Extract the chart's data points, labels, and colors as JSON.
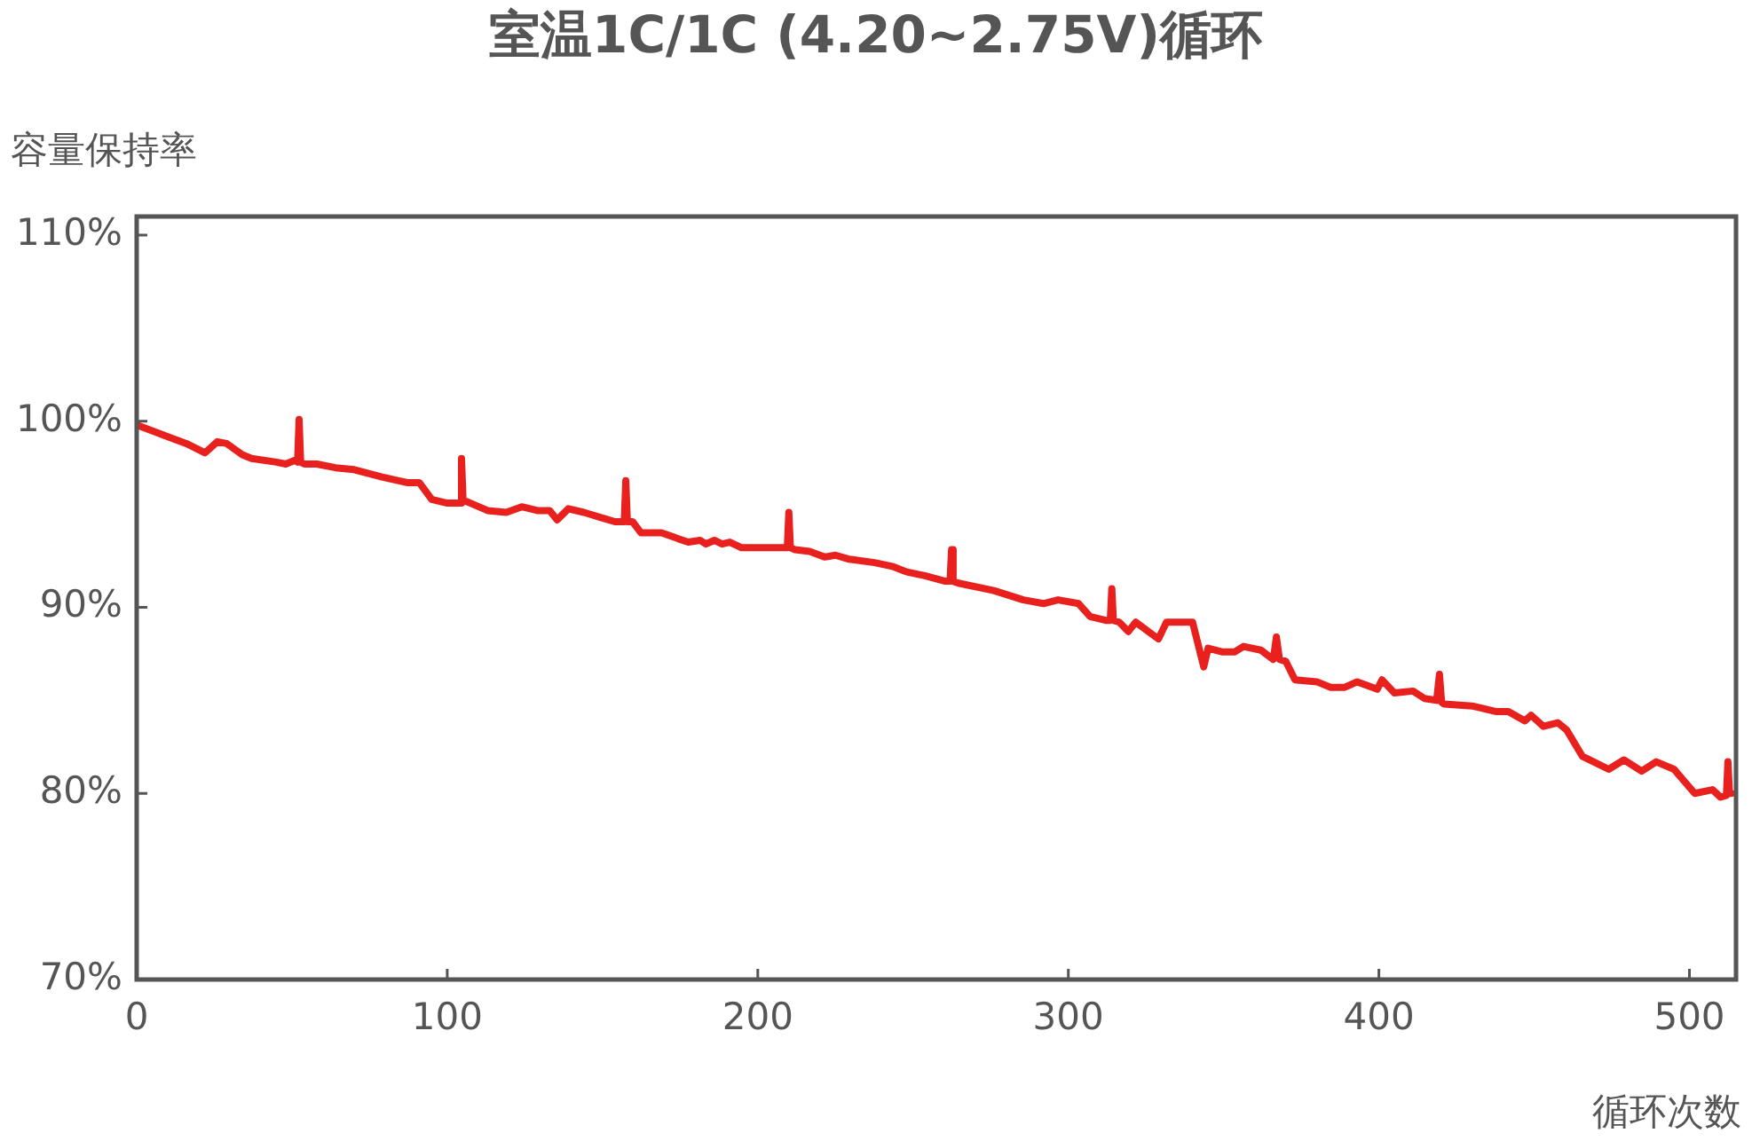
{
  "chart_data": {
    "type": "line",
    "title": "室温1C/1C (4.20~2.75V)循环",
    "xlabel": "循环次数",
    "ylabel": "容量保持率",
    "xlim": [
      0,
      515
    ],
    "xticks": [
      0,
      100,
      200,
      300,
      400,
      500
    ],
    "ylim": [
      70,
      111
    ],
    "yticks": [
      {
        "value": 70,
        "label": "70%"
      },
      {
        "value": 80,
        "label": "80%"
      },
      {
        "value": 90,
        "label": "90%"
      },
      {
        "value": 100,
        "label": "100%"
      },
      {
        "value": 110,
        "label": "110%"
      }
    ],
    "grid": false,
    "legend": false,
    "marker": "none",
    "line_style": "solid",
    "series": [
      {
        "color": "#e8201e",
        "x": [
          0,
          11,
          16,
          22,
          26,
          29,
          34,
          37,
          45,
          48,
          51,
          51.8,
          52.3,
          52.8,
          54,
          58,
          64,
          70,
          79,
          87,
          91,
          95,
          100,
          103,
          104.1,
          104.6,
          105.1,
          106,
          113,
          119,
          124,
          129,
          133,
          135.4,
          139,
          144,
          150,
          154,
          157,
          157.5,
          158,
          159.7,
          162.4,
          169,
          177.6,
          181.4,
          183.3,
          186,
          188.5,
          191,
          194.8,
          208,
          209.5,
          210,
          210.5,
          212,
          216.7,
          221.5,
          225,
          229,
          237.6,
          243.3,
          248,
          253.8,
          260.4,
          261.9,
          262.4,
          262.9,
          264.6,
          276,
          285.5,
          292,
          296.7,
          303.3,
          307,
          312,
          313.5,
          314,
          314.5,
          316.4,
          319.3,
          321.7,
          329,
          331.6,
          340,
          343.6,
          345,
          349.7,
          353.5,
          356.4,
          362,
          366,
          367,
          368,
          370,
          373,
          380,
          384.5,
          389,
          393,
          399.5,
          401,
          405,
          411,
          414.7,
          418.6,
          419.5,
          420.2,
          421,
          430,
          437.6,
          441.7,
          447,
          449,
          453,
          457.6,
          460.5,
          465.5,
          474,
          478.9,
          484.6,
          489.3,
          495,
          501.7,
          507.4,
          510,
          511.9,
          512.4,
          512.9,
          513.5
        ],
        "values": [
          99.8,
          99.1,
          98.8,
          98.3,
          98.9,
          98.8,
          98.2,
          98.0,
          97.8,
          97.7,
          97.9,
          97.8,
          100.1,
          97.8,
          97.7,
          97.7,
          97.5,
          97.4,
          97.0,
          96.7,
          96.7,
          95.8,
          95.6,
          95.6,
          95.6,
          98.0,
          95.7,
          95.7,
          95.2,
          95.1,
          95.4,
          95.2,
          95.2,
          94.7,
          95.3,
          95.1,
          94.8,
          94.6,
          94.6,
          96.8,
          94.6,
          94.6,
          94.0,
          94.0,
          93.5,
          93.6,
          93.4,
          93.6,
          93.4,
          93.5,
          93.2,
          93.2,
          93.2,
          95.1,
          93.2,
          93.1,
          93.0,
          92.7,
          92.8,
          92.6,
          92.4,
          92.2,
          91.9,
          91.7,
          91.4,
          91.4,
          93.1,
          91.4,
          91.3,
          90.9,
          90.4,
          90.2,
          90.4,
          90.2,
          89.5,
          89.3,
          89.3,
          91.0,
          89.3,
          89.2,
          88.7,
          89.2,
          88.3,
          89.2,
          89.2,
          86.8,
          87.8,
          87.6,
          87.6,
          87.9,
          87.7,
          87.2,
          88.4,
          87.2,
          87.1,
          86.1,
          86.0,
          85.7,
          85.7,
          86.0,
          85.6,
          86.1,
          85.4,
          85.5,
          85.1,
          85.0,
          86.4,
          84.9,
          84.8,
          84.7,
          84.4,
          84.4,
          83.9,
          84.2,
          83.6,
          83.8,
          83.4,
          82.0,
          81.3,
          81.8,
          81.2,
          81.7,
          81.3,
          80.0,
          80.2,
          79.8,
          79.9,
          81.7,
          80.0,
          80.0
        ]
      }
    ]
  }
}
